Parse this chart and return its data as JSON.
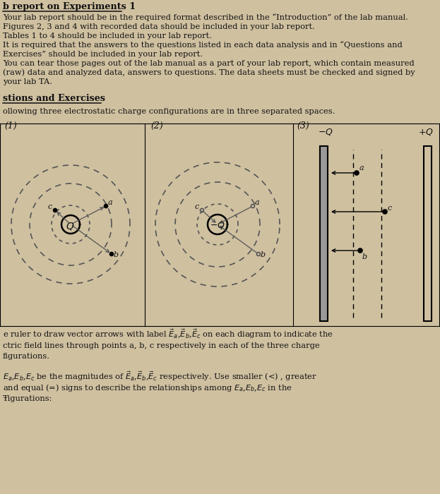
{
  "bg_color": "#cfc0a0",
  "title_text": "b report on Experiments 1",
  "para1": "Your lab report should be in the required format described in the “Introduction” of the lab manual.",
  "para2": "Figures 2, 3 and 4 with recorded data should be included in your lab report.",
  "para3": "Tables 1 to 4 should be included in your lab report.",
  "para4": "It is required that the answers to the questions listed in each data analysis and in “Questions and",
  "para5": "Exercises” should be included in your lab report.",
  "para6": "You can tear those pages out of the lab manual as a part of your lab report, which contain measured",
  "para7": "(raw) data and analyzed data, answers to questions. The data sheets must be checked and signed by",
  "para8": "your lab TA.",
  "section2_title": "stions and Exercises",
  "section2_para": "ollowing three electrostatic charge configurations are in three separated spaces.",
  "bottom_para1": "e ruler to draw vector arrows with label $\\vec{E}_{a}$,$\\vec{E}_{b}$,$\\vec{E}_{c}$ on each diagram to indicate the",
  "bottom_para2": "ctric field lines through points a, b, c respectively in each of the three charge",
  "bottom_para3": "figurations.",
  "bottom_para4": "$E_{a}$,$E_{b}$,$E_{c}$ be the magnitudes of $\\vec{E}_{a}$,$\\vec{E}_{b}$,$\\vec{E}_{c}$ respectively. Use smaller (<) , greater",
  "bottom_para5": "and equal (=) signs to describe the relationships among $E_{a}$,$E_{b}$,$E_{c}$ in the",
  "bottom_para6": "Ŧigurations:"
}
